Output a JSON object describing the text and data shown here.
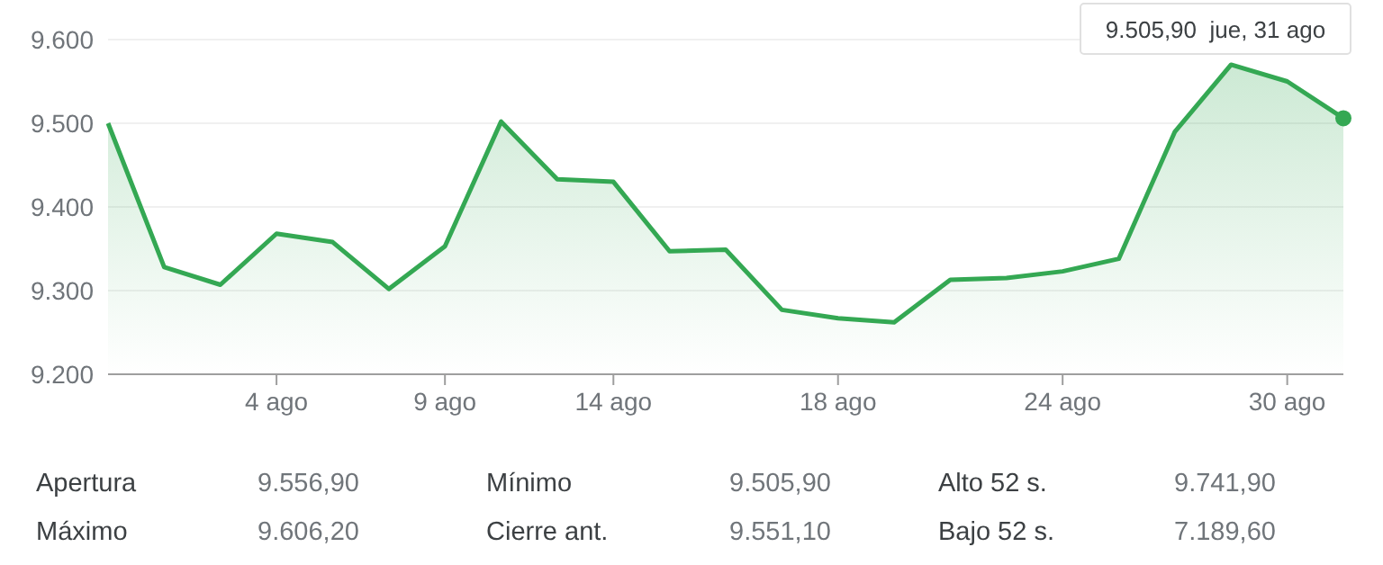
{
  "chart_data": {
    "type": "area",
    "categories": [
      null,
      null,
      null,
      "4 ago",
      null,
      null,
      "9 ago",
      null,
      null,
      "14 ago",
      null,
      null,
      null,
      "18 ago",
      null,
      null,
      null,
      "24 ago",
      null,
      null,
      null,
      "30 ago",
      null
    ],
    "series": [
      {
        "color": "#34a853",
        "values": [
          9500,
          9328,
          9307,
          9368,
          9358,
          9302,
          9353,
          9502,
          9433,
          9430,
          9347,
          9349,
          9277,
          9267,
          9262,
          9313,
          9315,
          9323,
          9338,
          9490,
          9570,
          9550,
          9506
        ]
      }
    ],
    "ylim": [
      9200,
      9600
    ],
    "yticks": [
      {
        "value": 9200,
        "label": "9.200"
      },
      {
        "value": 9300,
        "label": "9.300"
      },
      {
        "value": 9400,
        "label": "9.400"
      },
      {
        "value": 9500,
        "label": "9.500"
      },
      {
        "value": 9600,
        "label": "9.600"
      }
    ],
    "grid": "y",
    "annotations": [
      "9.505,90  jue, 31 ago",
      "Apertura",
      "9.556,90",
      "Mínimo",
      "9.505,90",
      "Alto 52 s.",
      "9.741,90",
      "Máximo",
      "9.606,20",
      "Cierre ant.",
      "9.551,10",
      "Bajo 52 s.",
      "7.189,60"
    ]
  }
}
